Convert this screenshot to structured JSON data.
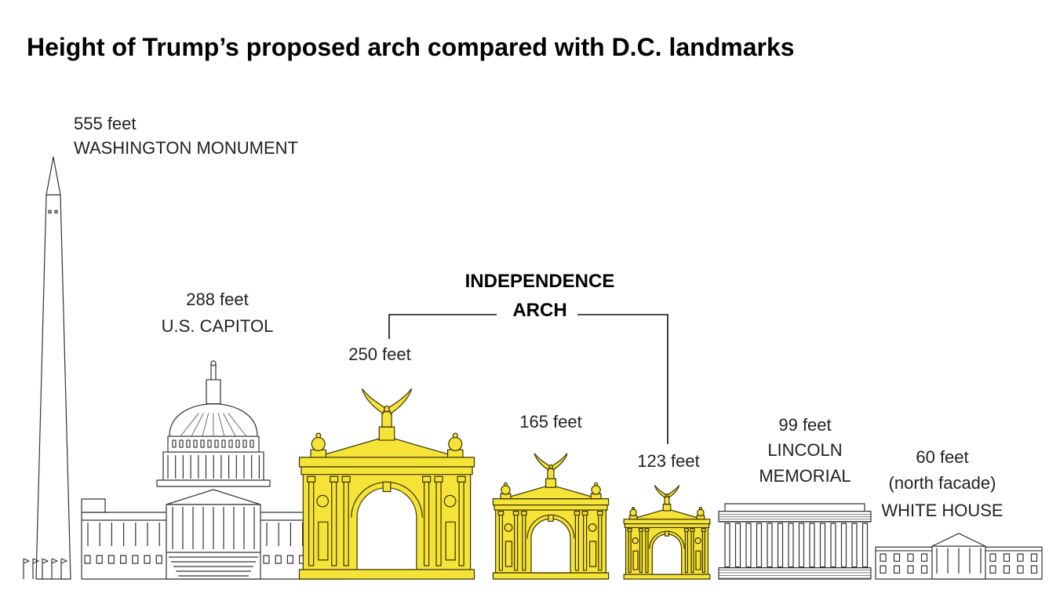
{
  "chart_data": {
    "type": "bar",
    "title": "Height of Trump’s proposed arch compared with D.C. landmarks",
    "unit": "feet",
    "categories": [
      "WASHINGTON MONUMENT",
      "U.S. CAPITOL",
      "INDEPENDENCE ARCH",
      "INDEPENDENCE ARCH",
      "INDEPENDENCE ARCH",
      "LINCOLN MEMORIAL",
      "WHITE HOUSE"
    ],
    "values": [
      555,
      288,
      250,
      165,
      123,
      99,
      60
    ],
    "value_labels": [
      "555 feet",
      "288 feet",
      "250 feet",
      "165 feet",
      "123 feet",
      "99 feet",
      "60 feet"
    ],
    "name_lines": [
      [
        "WASHINGTON MONUMENT"
      ],
      [
        "U.S. CAPITOL"
      ],
      [],
      [],
      [],
      [
        "LINCOLN",
        "MEMORIAL"
      ],
      [
        "(north facade)",
        "WHITE HOUSE"
      ]
    ],
    "highlight": [
      false,
      false,
      true,
      true,
      true,
      false,
      false
    ],
    "group_label": [
      "INDEPENDENCE",
      "ARCH"
    ],
    "colors": {
      "highlight": "#f5e338",
      "highlight_stroke": "#3a3300",
      "landmark_stroke": "#333333",
      "landmark_fill": "#ffffff"
    }
  }
}
